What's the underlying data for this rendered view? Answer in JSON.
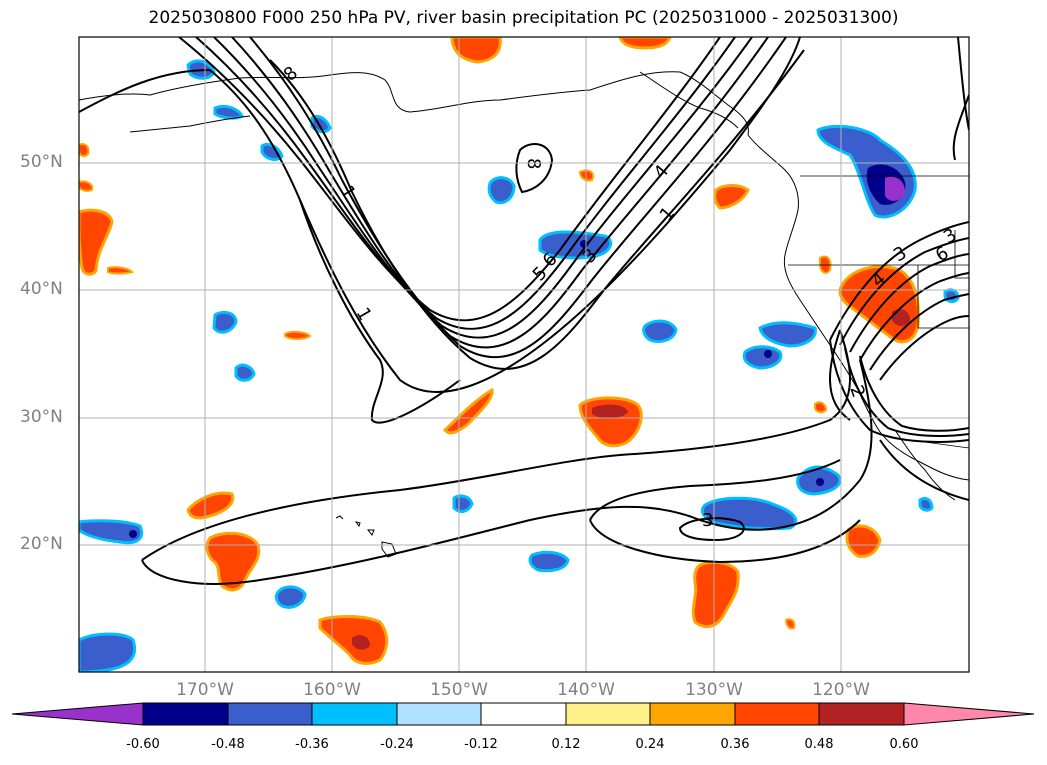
{
  "title": "2025030800 F000 250 hPa PV, river basin precipitation PC (2025031000 - 2025031300)",
  "latitudes": [
    "50°N",
    "40°N",
    "30°N",
    "20°N"
  ],
  "longitudes": [
    "170°W",
    "160°W",
    "150°W",
    "140°W",
    "130°W",
    "120°W"
  ],
  "colorbar": {
    "ticks": [
      "-0.60",
      "-0.48",
      "-0.36",
      "-0.24",
      "-0.12",
      "0.12",
      "0.24",
      "0.36",
      "0.48",
      "0.60"
    ],
    "colors": [
      "#9932cc",
      "#00008b",
      "#3a5fcd",
      "#00bfff",
      "#b0e2ff",
      "#ffffff",
      "#fff08a",
      "#ffa500",
      "#ff4500",
      "#b22222",
      "#ff88aa"
    ]
  },
  "contour_labels": [
    "8",
    "8",
    "1",
    "1",
    "1",
    "4",
    "6",
    "5",
    "3",
    "2",
    "3",
    "3",
    "6",
    "4",
    "3"
  ],
  "colors": {
    "neg_fill": "#3a5fcd",
    "neg_edge": "#00bfff",
    "pos_fill": "#ff4500",
    "pos_edge": "#ffa500",
    "pos_core": "#b22222",
    "neg_core": "#00008b",
    "neg_extreme": "#9932cc",
    "grid": "#b0b0b0",
    "contour": "#000000"
  }
}
